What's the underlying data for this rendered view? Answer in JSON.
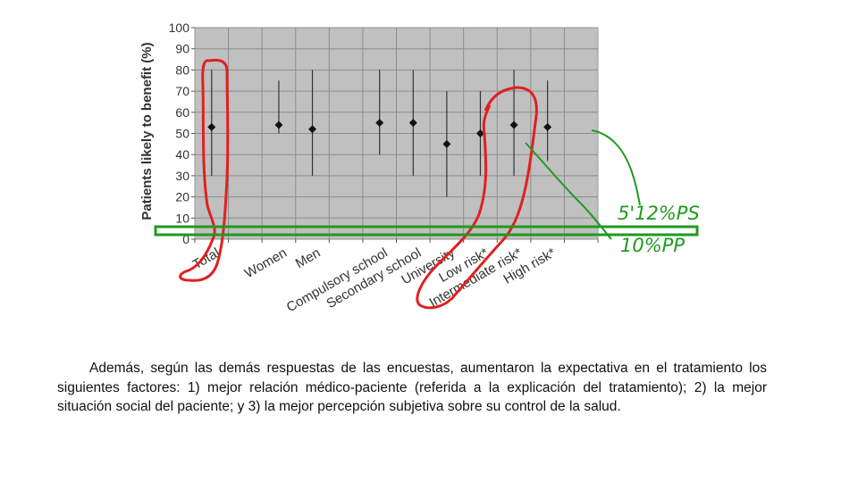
{
  "chart_data": {
    "type": "errorbar",
    "ylabel": "Patients likely to benefit (%)",
    "ylim": [
      0,
      100
    ],
    "yticks": [
      0,
      10,
      20,
      30,
      40,
      50,
      60,
      70,
      80,
      90,
      100
    ],
    "grid": true,
    "categories": [
      "Total",
      "Women",
      "Men",
      "Compulsory school",
      "Secondary school",
      "University",
      "Low risk*",
      "Intermediate risk*",
      "High risk*"
    ],
    "series": [
      {
        "values": [
          53,
          54,
          52,
          55,
          55,
          45,
          50,
          54,
          53
        ],
        "lower": [
          30,
          50,
          30,
          40,
          30,
          20,
          30,
          30,
          37
        ],
        "upper": [
          80,
          75,
          80,
          80,
          80,
          70,
          70,
          80,
          75
        ]
      }
    ]
  },
  "annotations": {
    "handwritten_ps": "5'12%PS",
    "handwritten_pp": "10%PP",
    "colors": {
      "red": "#e02020",
      "green": "#1f9a1f"
    }
  },
  "caption": "Además, según las demás respuestas de las encuestas, aumentaron la expectativa en el tratamiento los siguientes factores: 1) mejor relación médico-paciente (referida a la explicación del tratamiento); 2) la mejor situación social del paciente; y 3) la mejor percepción subjetiva sobre su control de la salud."
}
